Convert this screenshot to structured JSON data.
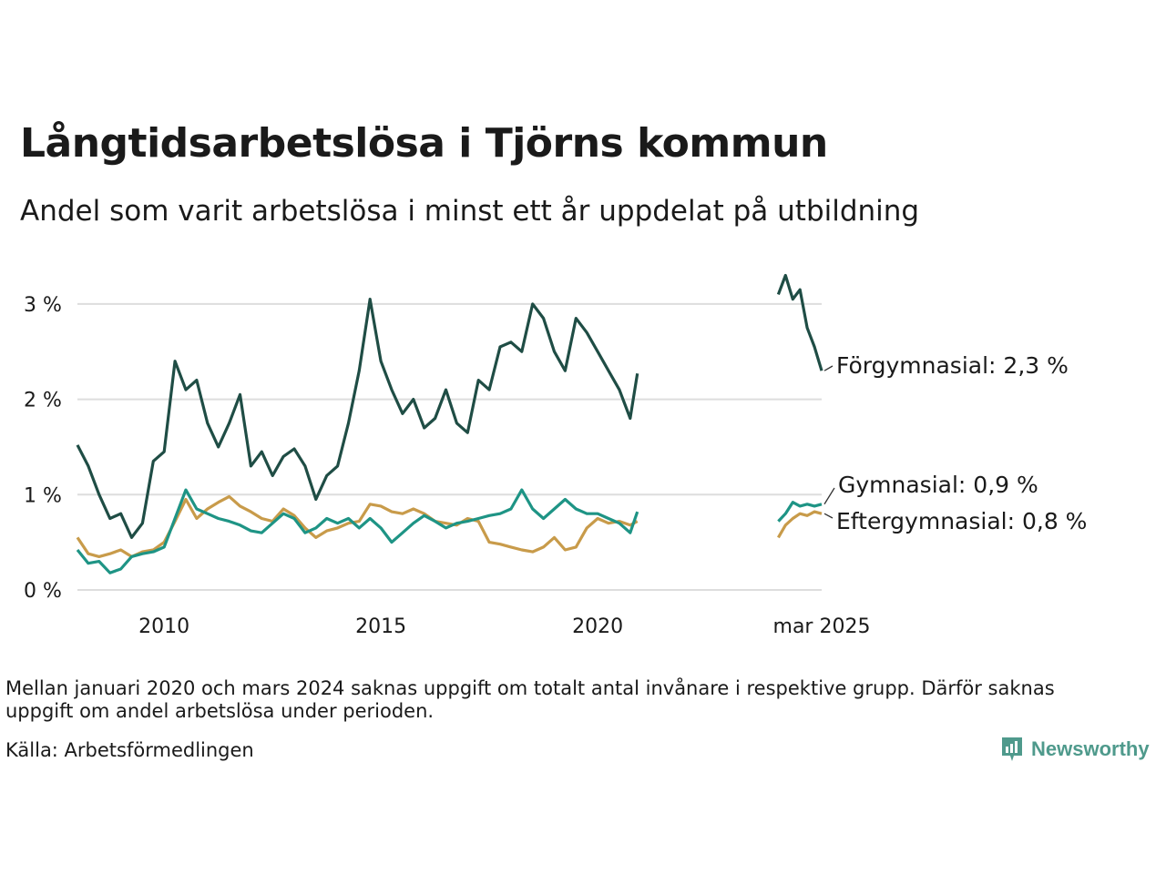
{
  "title": "Långtidsarbetslösa i Tjörns kommun",
  "subtitle": "Andel som varit arbetslösa i minst ett år uppdelat på utbildning",
  "note": "Mellan januari 2020 och mars 2024 saknas uppgift om totalt antal invånare i respektive grupp. Därför saknas uppgift om andel arbetslösa under perioden.",
  "source": "Källa: Arbetsförmedlingen",
  "brand": "Newsworthy",
  "colors": {
    "forgymnasial": "#1f4d45",
    "gymnasial": "#1e9485",
    "eftergymnasial": "#c89b4a",
    "grid": "#dddddd",
    "brand": "#4f9a8c"
  },
  "chart_data": {
    "type": "line",
    "x_unit": "months",
    "ylim": [
      0,
      3.4
    ],
    "y_ticks": [
      0,
      1,
      2,
      3
    ],
    "y_tick_labels": [
      "0 %",
      "1 %",
      "2 %",
      "3 %"
    ],
    "x_ticks": [
      "2010-01",
      "2015-01",
      "2020-01",
      "2025-03"
    ],
    "x_tick_labels": [
      "2010",
      "2015",
      "2020",
      "mar 2025"
    ],
    "grid": "horizontal",
    "series": [
      {
        "name": "Förgymnasial",
        "end_label": "Förgymnasial: 2,3 %",
        "points": [
          [
            "2008-01",
            1.52
          ],
          [
            "2008-04",
            1.3
          ],
          [
            "2008-07",
            1.0
          ],
          [
            "2008-10",
            0.75
          ],
          [
            "2009-01",
            0.8
          ],
          [
            "2009-04",
            0.55
          ],
          [
            "2009-07",
            0.7
          ],
          [
            "2009-10",
            1.35
          ],
          [
            "2010-01",
            1.45
          ],
          [
            "2010-04",
            2.4
          ],
          [
            "2010-07",
            2.1
          ],
          [
            "2010-10",
            2.2
          ],
          [
            "2011-01",
            1.75
          ],
          [
            "2011-04",
            1.5
          ],
          [
            "2011-07",
            1.75
          ],
          [
            "2011-10",
            2.05
          ],
          [
            "2012-01",
            1.3
          ],
          [
            "2012-04",
            1.45
          ],
          [
            "2012-07",
            1.2
          ],
          [
            "2012-10",
            1.4
          ],
          [
            "2013-01",
            1.48
          ],
          [
            "2013-04",
            1.3
          ],
          [
            "2013-07",
            0.95
          ],
          [
            "2013-10",
            1.2
          ],
          [
            "2014-01",
            1.3
          ],
          [
            "2014-04",
            1.75
          ],
          [
            "2014-07",
            2.3
          ],
          [
            "2014-10",
            3.05
          ],
          [
            "2015-01",
            2.4
          ],
          [
            "2015-04",
            2.1
          ],
          [
            "2015-07",
            1.85
          ],
          [
            "2015-10",
            2.0
          ],
          [
            "2016-01",
            1.7
          ],
          [
            "2016-04",
            1.8
          ],
          [
            "2016-07",
            2.1
          ],
          [
            "2016-10",
            1.75
          ],
          [
            "2017-01",
            1.65
          ],
          [
            "2017-04",
            2.2
          ],
          [
            "2017-07",
            2.1
          ],
          [
            "2017-10",
            2.55
          ],
          [
            "2018-01",
            2.6
          ],
          [
            "2018-04",
            2.5
          ],
          [
            "2018-07",
            3.0
          ],
          [
            "2018-10",
            2.85
          ],
          [
            "2019-01",
            2.5
          ],
          [
            "2019-04",
            2.3
          ],
          [
            "2019-07",
            2.85
          ],
          [
            "2019-10",
            2.7
          ],
          [
            "2020-01",
            2.5
          ],
          [
            "2020-04",
            2.3
          ],
          [
            "2020-07",
            2.1
          ],
          [
            "2020-10",
            1.8
          ],
          [
            "2020-12",
            2.27
          ],
          null,
          [
            "2024-03",
            3.1
          ],
          [
            "2024-05",
            3.3
          ],
          [
            "2024-07",
            3.05
          ],
          [
            "2024-09",
            3.15
          ],
          [
            "2024-11",
            2.75
          ],
          [
            "2025-01",
            2.55
          ],
          [
            "2025-03",
            2.3
          ]
        ]
      },
      {
        "name": "Gymnasial",
        "end_label": "Gymnasial: 0,9 %",
        "points": [
          [
            "2008-01",
            0.42
          ],
          [
            "2008-04",
            0.28
          ],
          [
            "2008-07",
            0.3
          ],
          [
            "2008-10",
            0.18
          ],
          [
            "2009-01",
            0.22
          ],
          [
            "2009-04",
            0.35
          ],
          [
            "2009-07",
            0.38
          ],
          [
            "2009-10",
            0.4
          ],
          [
            "2010-01",
            0.45
          ],
          [
            "2010-04",
            0.75
          ],
          [
            "2010-07",
            1.05
          ],
          [
            "2010-10",
            0.85
          ],
          [
            "2011-01",
            0.8
          ],
          [
            "2011-04",
            0.75
          ],
          [
            "2011-07",
            0.72
          ],
          [
            "2011-10",
            0.68
          ],
          [
            "2012-01",
            0.62
          ],
          [
            "2012-04",
            0.6
          ],
          [
            "2012-07",
            0.7
          ],
          [
            "2012-10",
            0.8
          ],
          [
            "2013-01",
            0.75
          ],
          [
            "2013-04",
            0.6
          ],
          [
            "2013-07",
            0.65
          ],
          [
            "2013-10",
            0.75
          ],
          [
            "2014-01",
            0.7
          ],
          [
            "2014-04",
            0.75
          ],
          [
            "2014-07",
            0.65
          ],
          [
            "2014-10",
            0.75
          ],
          [
            "2015-01",
            0.65
          ],
          [
            "2015-04",
            0.5
          ],
          [
            "2015-07",
            0.6
          ],
          [
            "2015-10",
            0.7
          ],
          [
            "2016-01",
            0.78
          ],
          [
            "2016-04",
            0.72
          ],
          [
            "2016-07",
            0.65
          ],
          [
            "2016-10",
            0.7
          ],
          [
            "2017-01",
            0.72
          ],
          [
            "2017-04",
            0.75
          ],
          [
            "2017-07",
            0.78
          ],
          [
            "2017-10",
            0.8
          ],
          [
            "2018-01",
            0.85
          ],
          [
            "2018-04",
            1.05
          ],
          [
            "2018-07",
            0.85
          ],
          [
            "2018-10",
            0.75
          ],
          [
            "2019-01",
            0.85
          ],
          [
            "2019-04",
            0.95
          ],
          [
            "2019-07",
            0.85
          ],
          [
            "2019-10",
            0.8
          ],
          [
            "2020-01",
            0.8
          ],
          [
            "2020-04",
            0.75
          ],
          [
            "2020-07",
            0.7
          ],
          [
            "2020-10",
            0.6
          ],
          [
            "2020-12",
            0.82
          ],
          null,
          [
            "2024-03",
            0.72
          ],
          [
            "2024-05",
            0.8
          ],
          [
            "2024-07",
            0.92
          ],
          [
            "2024-09",
            0.88
          ],
          [
            "2024-11",
            0.9
          ],
          [
            "2025-01",
            0.88
          ],
          [
            "2025-03",
            0.9
          ]
        ]
      },
      {
        "name": "Eftergymnasial",
        "end_label": "Eftergymnasial: 0,8 %",
        "points": [
          [
            "2008-01",
            0.55
          ],
          [
            "2008-04",
            0.38
          ],
          [
            "2008-07",
            0.35
          ],
          [
            "2008-10",
            0.38
          ],
          [
            "2009-01",
            0.42
          ],
          [
            "2009-04",
            0.35
          ],
          [
            "2009-07",
            0.4
          ],
          [
            "2009-10",
            0.42
          ],
          [
            "2010-01",
            0.5
          ],
          [
            "2010-04",
            0.72
          ],
          [
            "2010-07",
            0.95
          ],
          [
            "2010-10",
            0.75
          ],
          [
            "2011-01",
            0.85
          ],
          [
            "2011-04",
            0.92
          ],
          [
            "2011-07",
            0.98
          ],
          [
            "2011-10",
            0.88
          ],
          [
            "2012-01",
            0.82
          ],
          [
            "2012-04",
            0.75
          ],
          [
            "2012-07",
            0.72
          ],
          [
            "2012-10",
            0.85
          ],
          [
            "2013-01",
            0.78
          ],
          [
            "2013-04",
            0.65
          ],
          [
            "2013-07",
            0.55
          ],
          [
            "2013-10",
            0.62
          ],
          [
            "2014-01",
            0.65
          ],
          [
            "2014-04",
            0.7
          ],
          [
            "2014-07",
            0.72
          ],
          [
            "2014-10",
            0.9
          ],
          [
            "2015-01",
            0.88
          ],
          [
            "2015-04",
            0.82
          ],
          [
            "2015-07",
            0.8
          ],
          [
            "2015-10",
            0.85
          ],
          [
            "2016-01",
            0.8
          ],
          [
            "2016-04",
            0.72
          ],
          [
            "2016-07",
            0.7
          ],
          [
            "2016-10",
            0.68
          ],
          [
            "2017-01",
            0.75
          ],
          [
            "2017-04",
            0.72
          ],
          [
            "2017-07",
            0.5
          ],
          [
            "2017-10",
            0.48
          ],
          [
            "2018-01",
            0.45
          ],
          [
            "2018-04",
            0.42
          ],
          [
            "2018-07",
            0.4
          ],
          [
            "2018-10",
            0.45
          ],
          [
            "2019-01",
            0.55
          ],
          [
            "2019-04",
            0.42
          ],
          [
            "2019-07",
            0.45
          ],
          [
            "2019-10",
            0.65
          ],
          [
            "2020-01",
            0.75
          ],
          [
            "2020-04",
            0.7
          ],
          [
            "2020-07",
            0.72
          ],
          [
            "2020-10",
            0.68
          ],
          [
            "2020-12",
            0.72
          ],
          null,
          [
            "2024-03",
            0.55
          ],
          [
            "2024-05",
            0.68
          ],
          [
            "2024-07",
            0.75
          ],
          [
            "2024-09",
            0.8
          ],
          [
            "2024-11",
            0.78
          ],
          [
            "2025-01",
            0.82
          ],
          [
            "2025-03",
            0.8
          ]
        ]
      }
    ]
  }
}
